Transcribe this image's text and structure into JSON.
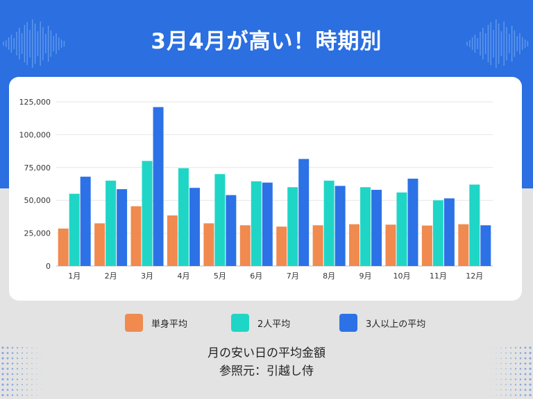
{
  "title": "3月4月が高い！時期別",
  "footer": {
    "line1": "月の安い日の平均金額",
    "line2": "参照元：引越し侍"
  },
  "colors": {
    "band": "#2b6fe0",
    "single": "#f08a4f",
    "two": "#1fd6c6",
    "three": "#2c72e6"
  },
  "chart_data": {
    "type": "bar",
    "categories": [
      "1月",
      "2月",
      "3月",
      "4月",
      "5月",
      "6月",
      "7月",
      "8月",
      "9月",
      "10月",
      "11月",
      "12月"
    ],
    "series": [
      {
        "name": "単身平均",
        "values": [
          28500,
          32500,
          45500,
          38500,
          32500,
          31000,
          30000,
          31000,
          31800,
          31500,
          30800,
          31800
        ]
      },
      {
        "name": "2人平均",
        "values": [
          55000,
          65000,
          80000,
          74500,
          70000,
          64500,
          60000,
          65000,
          60000,
          56000,
          50000,
          62000
        ]
      },
      {
        "name": "3人以上の平均",
        "values": [
          68000,
          58500,
          121000,
          59500,
          54000,
          63500,
          81500,
          61000,
          58000,
          66500,
          51500,
          31000
        ]
      }
    ],
    "ylim": [
      0,
      125000
    ],
    "yticks": [
      0,
      25000,
      50000,
      75000,
      100000,
      125000
    ],
    "ytick_labels": [
      "0",
      "25,000",
      "50,000",
      "75,000",
      "100,000",
      "125,000"
    ],
    "grid": true,
    "legend_position": "bottom"
  }
}
